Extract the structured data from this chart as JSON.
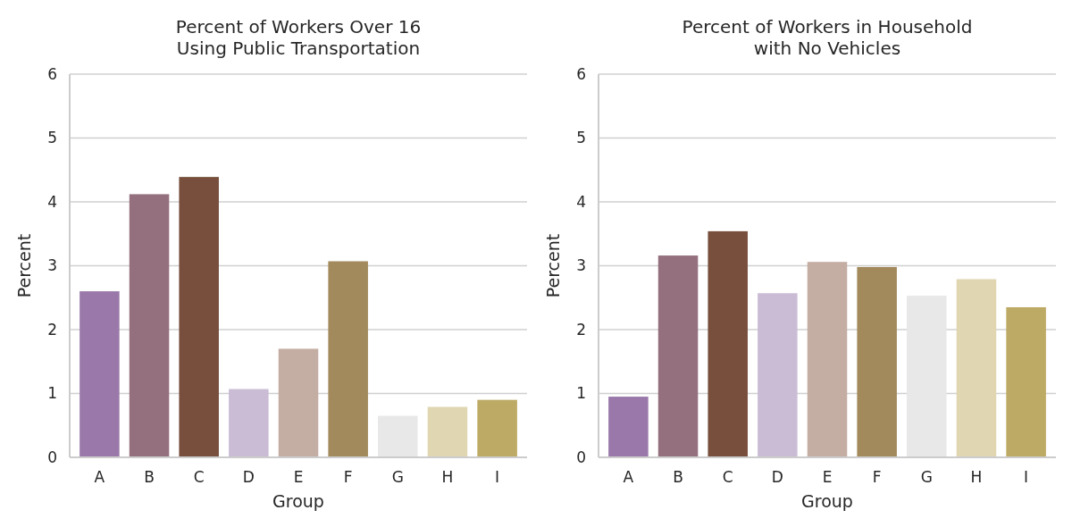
{
  "chart_data": [
    {
      "type": "bar",
      "title": "Percent of Workers Over 16\nUsing Public Transportation",
      "xlabel": "Group",
      "ylabel": "Percent",
      "categories": [
        "A",
        "B",
        "C",
        "D",
        "E",
        "F",
        "G",
        "H",
        "I"
      ],
      "values": [
        2.6,
        4.12,
        4.39,
        1.07,
        1.7,
        3.07,
        0.65,
        0.79,
        0.9
      ],
      "colors": [
        "#9a79aa",
        "#94707e",
        "#774f3c",
        "#cbbcd6",
        "#c4ada3",
        "#a38a5c",
        "#e8e8e8",
        "#e0d6b2",
        "#bdaa64"
      ],
      "ylim": [
        0,
        6
      ],
      "yticks": [
        0,
        1,
        2,
        3,
        4,
        5,
        6
      ],
      "grid": "y"
    },
    {
      "type": "bar",
      "title": "Percent of Workers in Household\nwith No Vehicles",
      "xlabel": "Group",
      "ylabel": "Percent",
      "categories": [
        "A",
        "B",
        "C",
        "D",
        "E",
        "F",
        "G",
        "H",
        "I"
      ],
      "values": [
        0.95,
        3.16,
        3.54,
        2.57,
        3.06,
        2.98,
        2.53,
        2.79,
        2.35
      ],
      "colors": [
        "#9a79aa",
        "#94707e",
        "#774f3c",
        "#cbbcd6",
        "#c4ada3",
        "#a38a5c",
        "#e8e8e8",
        "#e0d6b2",
        "#bdaa64"
      ],
      "ylim": [
        0,
        6
      ],
      "yticks": [
        0,
        1,
        2,
        3,
        4,
        5,
        6
      ],
      "grid": "y"
    }
  ]
}
